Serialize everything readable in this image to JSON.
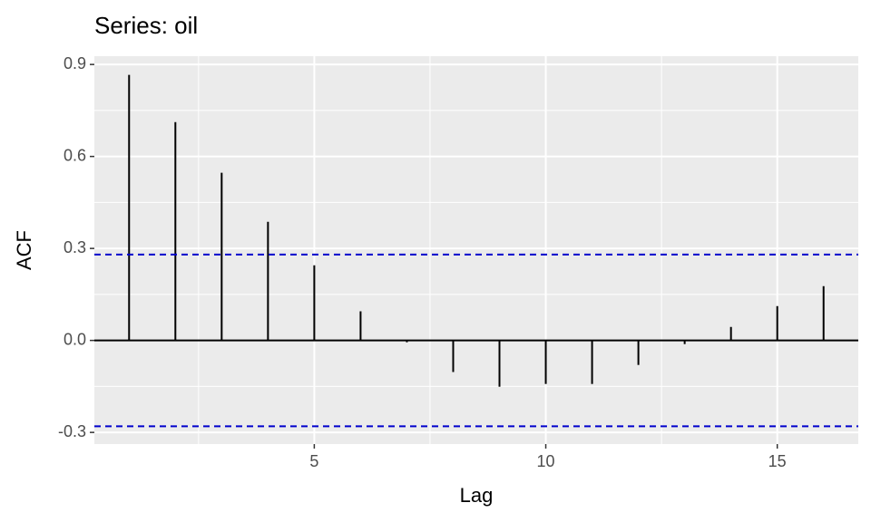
{
  "chart_data": {
    "type": "acf",
    "title": "Series: oil",
    "x_label": "Lag",
    "y_label": "ACF",
    "x": [
      1,
      2,
      3,
      4,
      5,
      6,
      7,
      8,
      9,
      10,
      11,
      12,
      13,
      14,
      15,
      16
    ],
    "values": [
      0.866,
      0.712,
      0.547,
      0.387,
      0.245,
      0.095,
      -0.006,
      -0.103,
      -0.151,
      -0.142,
      -0.142,
      -0.08,
      -0.012,
      0.044,
      0.112,
      0.177
    ],
    "color": "#000000",
    "ci_bounds": [
      0.28,
      -0.28
    ],
    "ci_color": "#0000cc",
    "xlim": [
      0.25,
      16.75
    ],
    "xticks": [
      5,
      10,
      15
    ],
    "x_minor_breaks": [
      2.5,
      7.5,
      12.5
    ],
    "ylim": [
      -0.338,
      0.927
    ],
    "yticks": [
      {
        "value": -0.3,
        "label": "-0.3"
      },
      {
        "value": 0,
        "label": "0.0"
      },
      0.3,
      0.6,
      0.9
    ],
    "y_minor_breaks": [
      -0.15,
      0.15,
      0.45,
      0.75
    ],
    "grid": true
  }
}
